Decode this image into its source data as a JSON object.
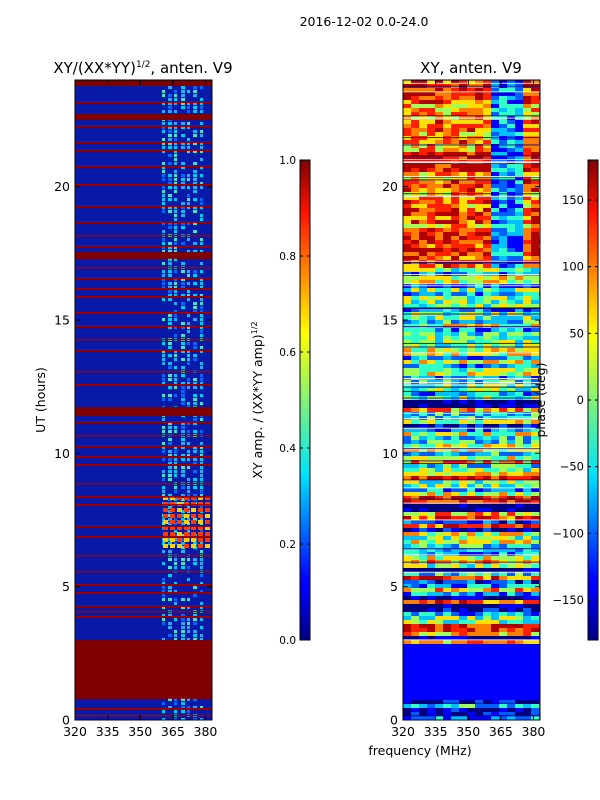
{
  "suptitle": "2016-12-02 0.0-24.0",
  "xlabel_shared": "frequency (MHz)",
  "chart_data": [
    {
      "type": "heatmap",
      "title": "XY/(XX*YY)",
      "title_sup": "1/2",
      "title_suffix": ", anten. V9",
      "ylabel": "UT (hours)",
      "xlim": [
        320,
        383
      ],
      "ylim": [
        0,
        24
      ],
      "xticks": [
        "320",
        "335",
        "350",
        "365",
        "380"
      ],
      "xtick_values": [
        320,
        335,
        350,
        365,
        380
      ],
      "yticks": [
        "0",
        "5",
        "10",
        "15",
        "20"
      ],
      "ytick_values": [
        0,
        5,
        10,
        15,
        20
      ],
      "flagged_bands_hours": [
        [
          0.8,
          3.0
        ],
        [
          11.4,
          11.75
        ],
        [
          17.3,
          17.55
        ],
        [
          22.5,
          22.75
        ],
        [
          23.8,
          24.0
        ]
      ],
      "colorbar": {
        "label": "XY amp. / (XX*YY amp)",
        "label_sup": "1/2",
        "min": 0.0,
        "max": 1.0,
        "ticks": [
          "0.0",
          "0.2",
          "0.4",
          "0.6",
          "0.8",
          "1.0"
        ],
        "tick_values": [
          0.0,
          0.2,
          0.4,
          0.6,
          0.8,
          1.0
        ]
      }
    },
    {
      "type": "heatmap",
      "title": "XY, anten. V9",
      "xlim": [
        320,
        383
      ],
      "ylim": [
        0,
        24
      ],
      "xticks": [
        "320",
        "335",
        "350",
        "365",
        "380"
      ],
      "xtick_values": [
        320,
        335,
        350,
        365,
        380
      ],
      "yticks": [
        "0",
        "5",
        "10",
        "15",
        "20"
      ],
      "ytick_values": [
        0,
        5,
        10,
        15,
        20
      ],
      "colorbar": {
        "label": "phase (deg)",
        "min": -180,
        "max": 180,
        "ticks": [
          "−150",
          "−100",
          "−50",
          "0",
          "50",
          "100",
          "150"
        ],
        "tick_values": [
          -150,
          -100,
          -50,
          0,
          50,
          100,
          150
        ]
      }
    }
  ]
}
